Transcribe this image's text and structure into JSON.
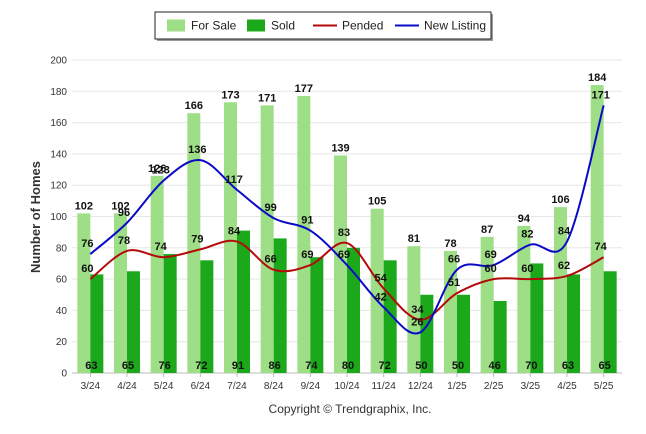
{
  "chart_data": {
    "type": "bar",
    "categories": [
      "3/24",
      "4/24",
      "5/24",
      "6/24",
      "7/24",
      "8/24",
      "9/24",
      "10/24",
      "11/24",
      "12/24",
      "1/25",
      "2/25",
      "3/25",
      "4/25",
      "5/25"
    ],
    "series": [
      {
        "name": "For Sale",
        "type": "bar",
        "color": "#9ede86",
        "values": [
          102,
          102,
          126,
          166,
          173,
          171,
          177,
          139,
          105,
          81,
          78,
          87,
          94,
          106,
          184
        ]
      },
      {
        "name": "Sold",
        "type": "bar",
        "color": "#1ba81b",
        "values": [
          63,
          65,
          76,
          72,
          91,
          86,
          74,
          80,
          72,
          50,
          50,
          46,
          70,
          63,
          65
        ]
      },
      {
        "name": "Pended",
        "type": "line",
        "color": "#b40a0a",
        "values": [
          60,
          78,
          74,
          79,
          84,
          66,
          69,
          83,
          54,
          34,
          51,
          60,
          60,
          62,
          74
        ]
      },
      {
        "name": "New Listing",
        "type": "line",
        "color": "#0a0ac8",
        "values": [
          76,
          96,
          123,
          136,
          117,
          99,
          91,
          69,
          42,
          26,
          66,
          69,
          82,
          84,
          171
        ]
      }
    ],
    "ylabel": "Number of Homes",
    "xlabel": "",
    "ylim": [
      0,
      200
    ],
    "yticks": [
      0,
      20,
      40,
      60,
      80,
      100,
      120,
      140,
      160,
      180,
      200
    ],
    "grid": true,
    "legend": "top-center",
    "credit": "Copyright © Trendgraphix, Inc."
  }
}
